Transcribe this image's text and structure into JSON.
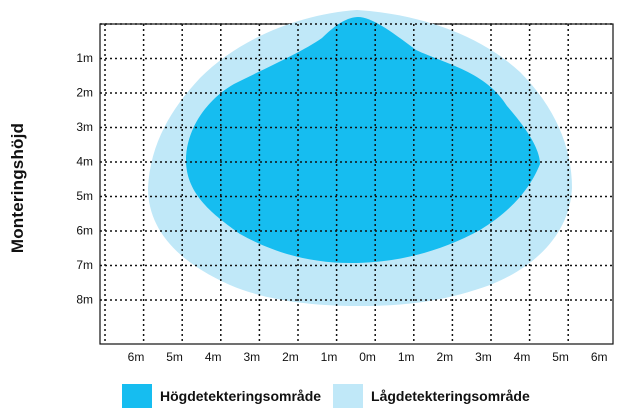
{
  "axis": {
    "y_title": "Monteringshöjd",
    "y_ticks": [
      "1m",
      "2m",
      "3m",
      "4m",
      "5m",
      "6m",
      "7m",
      "8m"
    ],
    "x_ticks": [
      "6m",
      "5m",
      "4m",
      "3m",
      "2m",
      "1m",
      "0m",
      "1m",
      "2m",
      "3m",
      "4m",
      "5m",
      "6m"
    ]
  },
  "zones": {
    "high": {
      "label": "Högdetekteringsområde",
      "color": "#16bdf0"
    },
    "low": {
      "label": "Lågdetekteringsområde",
      "color": "#c0e8f8"
    }
  },
  "grid": {
    "style": "dotted",
    "color": "#111111"
  }
}
